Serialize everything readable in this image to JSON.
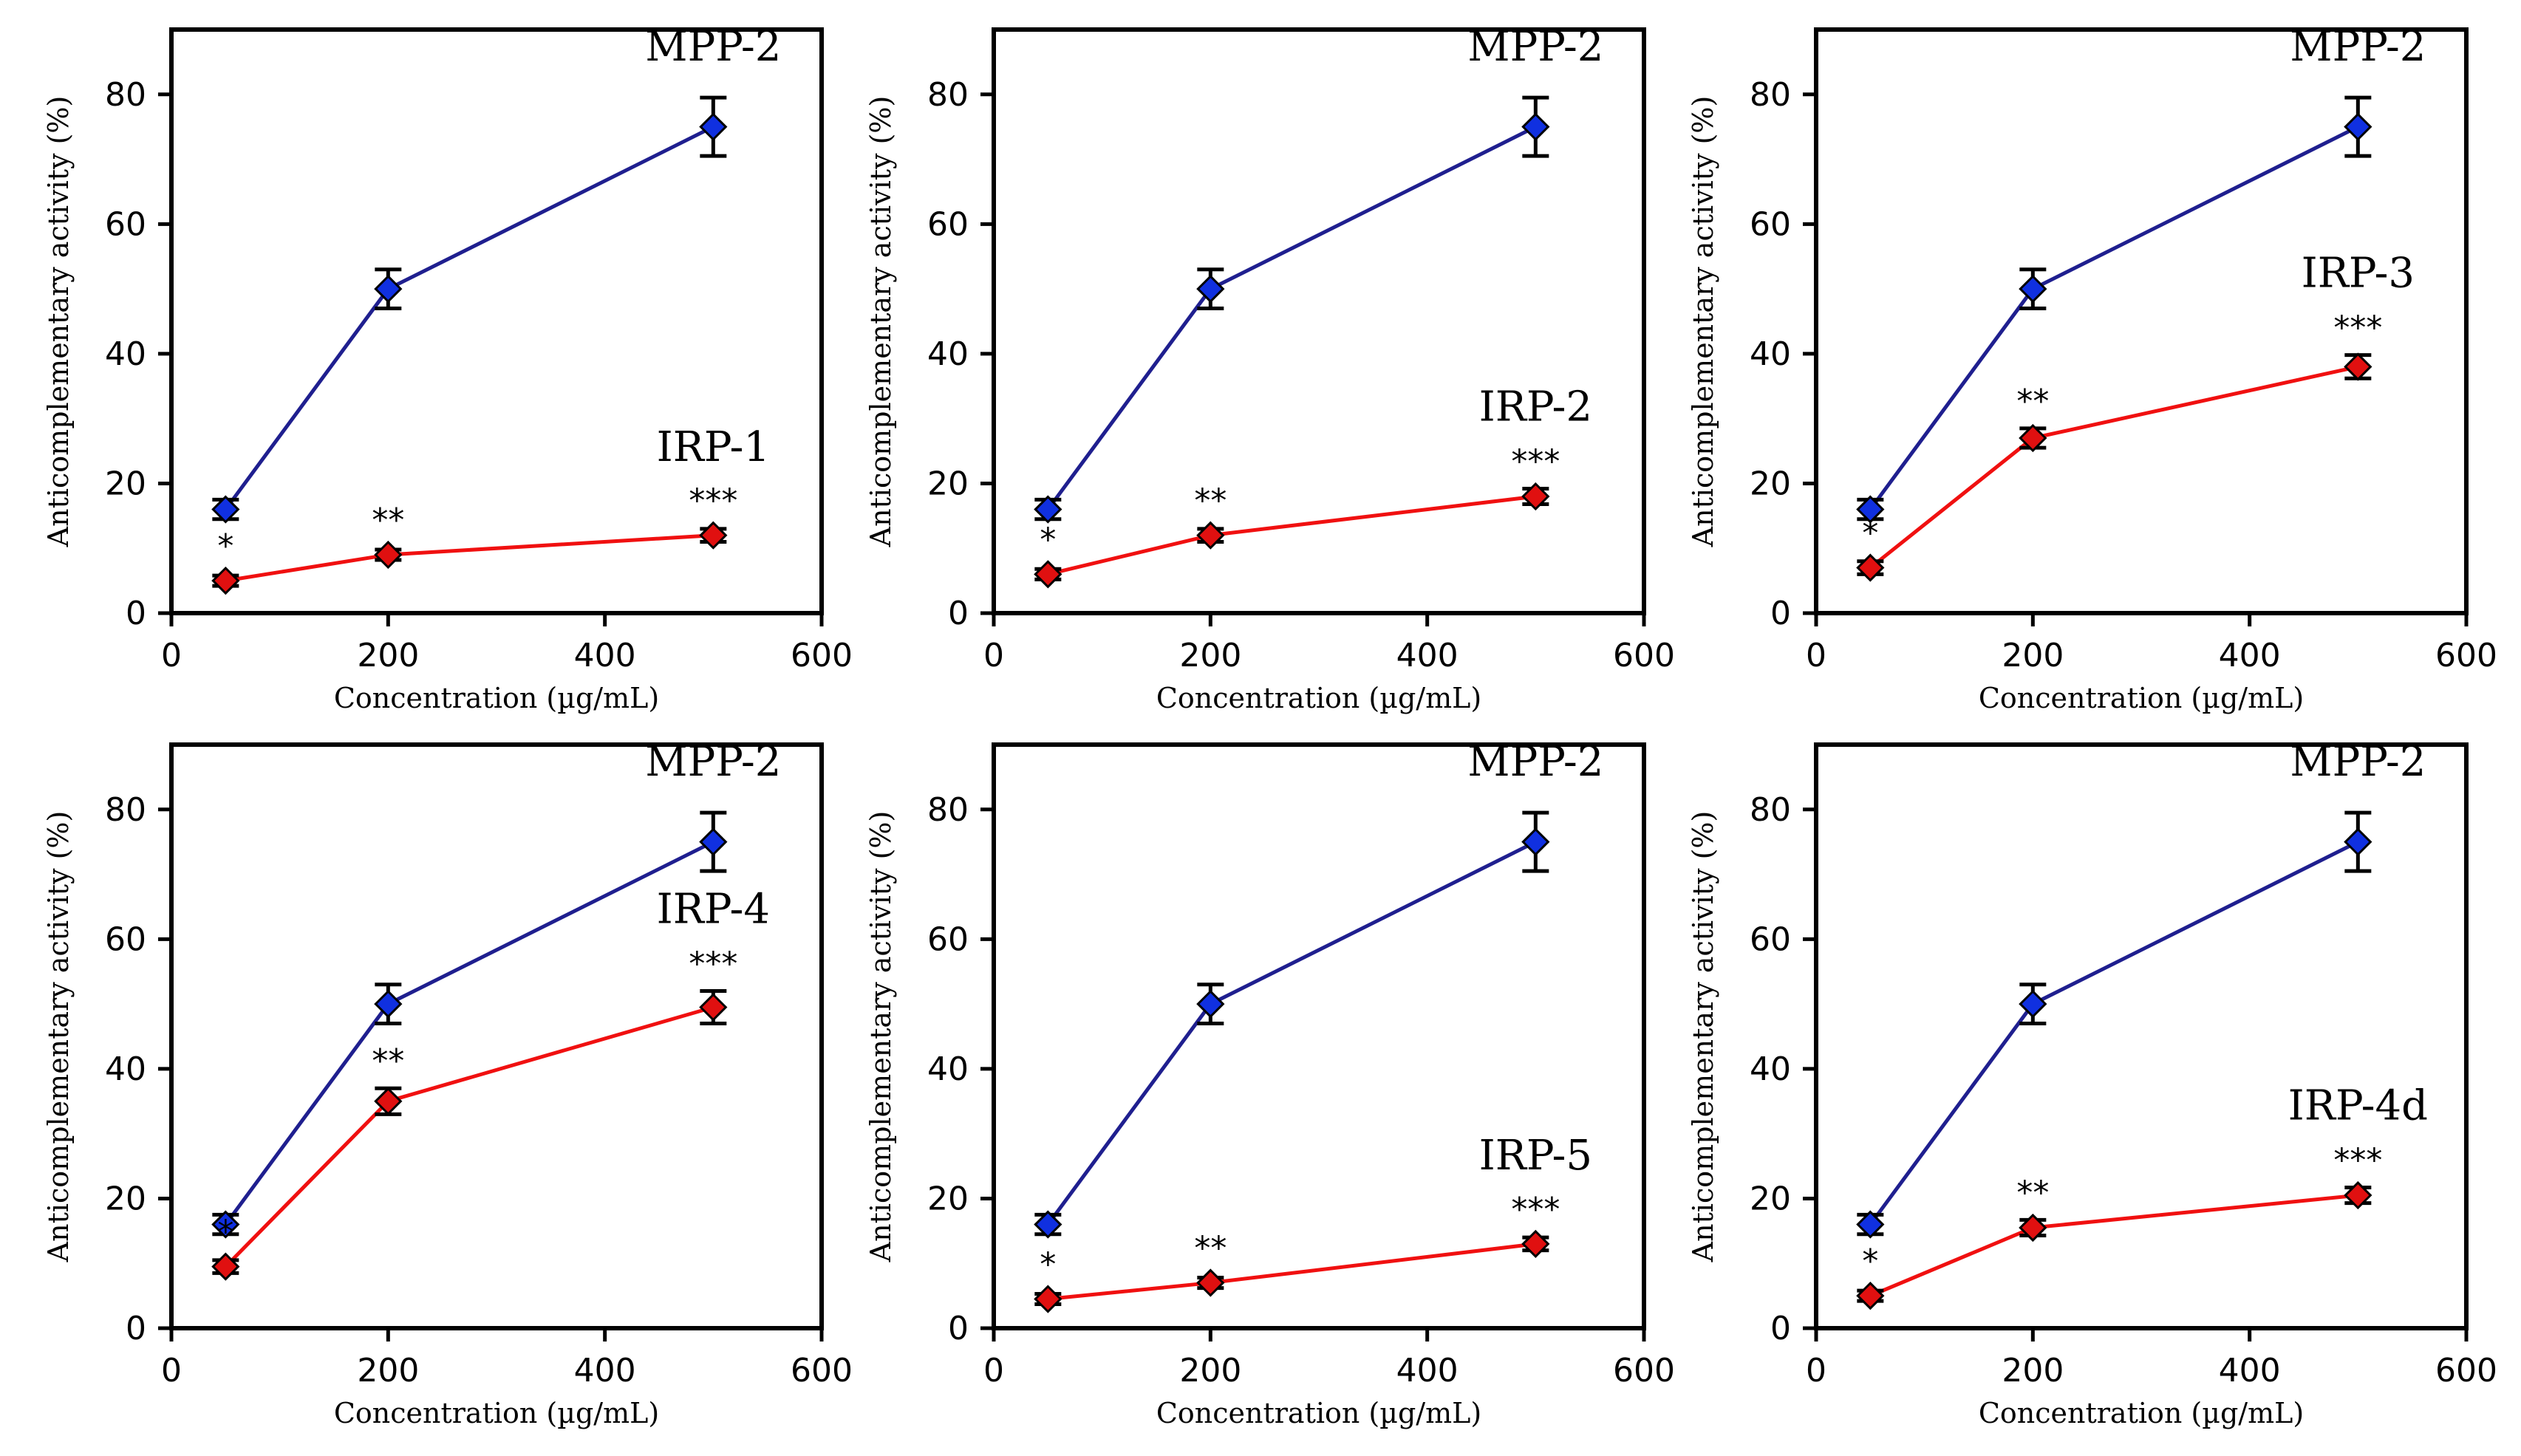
{
  "colors": {
    "reference": "#1f1f8f",
    "reference_marker": "#1030e0",
    "sample": "#f01010",
    "sample_marker": "#e01010",
    "axis": "#000000"
  },
  "chart_data": [
    {
      "type": "line",
      "xlabel": "Concentration (µg/mL)",
      "ylabel": "Anticomplementary activity (%)",
      "xlim": [
        0,
        600
      ],
      "ylim": [
        0,
        90
      ],
      "xticks": [
        "0",
        "200",
        "400",
        "600"
      ],
      "yticks": [
        "0",
        "20",
        "40",
        "60",
        "80"
      ],
      "x": [
        50,
        200,
        500
      ],
      "series": [
        {
          "name": "MPP-2",
          "values": [
            16,
            50,
            75
          ],
          "errors": [
            1.5,
            3,
            4.5
          ]
        },
        {
          "name": "IRP-1",
          "values": [
            5,
            9,
            12
          ],
          "errors": [
            0.8,
            0.8,
            1.0
          ],
          "significance": [
            "*",
            "**",
            "***"
          ]
        }
      ]
    },
    {
      "type": "line",
      "xlabel": "Concentration (µg/mL)",
      "ylabel": "Anticomplementary activity (%)",
      "xlim": [
        0,
        600
      ],
      "ylim": [
        0,
        90
      ],
      "xticks": [
        "0",
        "200",
        "400",
        "600"
      ],
      "yticks": [
        "0",
        "20",
        "40",
        "60",
        "80"
      ],
      "x": [
        50,
        200,
        500
      ],
      "series": [
        {
          "name": "MPP-2",
          "values": [
            16,
            50,
            75
          ],
          "errors": [
            1.5,
            3,
            4.5
          ]
        },
        {
          "name": "IRP-2",
          "values": [
            6,
            12,
            18
          ],
          "errors": [
            0.8,
            1.0,
            1.2
          ],
          "significance": [
            "*",
            "**",
            "***"
          ]
        }
      ]
    },
    {
      "type": "line",
      "xlabel": "Concentration (µg/mL)",
      "ylabel": "Anticomplementary activity (%)",
      "xlim": [
        0,
        600
      ],
      "ylim": [
        0,
        90
      ],
      "xticks": [
        "0",
        "200",
        "400",
        "600"
      ],
      "yticks": [
        "0",
        "20",
        "40",
        "60",
        "80"
      ],
      "x": [
        50,
        200,
        500
      ],
      "series": [
        {
          "name": "MPP-2",
          "values": [
            16,
            50,
            75
          ],
          "errors": [
            1.5,
            3,
            4.5
          ]
        },
        {
          "name": "IRP-3",
          "values": [
            7,
            27,
            38
          ],
          "errors": [
            1.0,
            1.5,
            1.8
          ],
          "significance": [
            "*",
            "**",
            "***"
          ]
        }
      ]
    },
    {
      "type": "line",
      "xlabel": "Concentration (µg/mL)",
      "ylabel": "Anticomplementary activity (%)",
      "xlim": [
        0,
        600
      ],
      "ylim": [
        0,
        90
      ],
      "xticks": [
        "0",
        "200",
        "400",
        "600"
      ],
      "yticks": [
        "0",
        "20",
        "40",
        "60",
        "80"
      ],
      "x": [
        50,
        200,
        500
      ],
      "series": [
        {
          "name": "MPP-2",
          "values": [
            16,
            50,
            75
          ],
          "errors": [
            1.5,
            3,
            4.5
          ]
        },
        {
          "name": "IRP-4",
          "values": [
            9.5,
            35,
            49.5
          ],
          "errors": [
            1.0,
            2.0,
            2.5
          ],
          "significance": [
            "*",
            "**",
            "***"
          ]
        }
      ]
    },
    {
      "type": "line",
      "xlabel": "Concentration (µg/mL)",
      "ylabel": "Anticomplementary activity (%)",
      "xlim": [
        0,
        600
      ],
      "ylim": [
        0,
        90
      ],
      "xticks": [
        "0",
        "200",
        "400",
        "600"
      ],
      "yticks": [
        "0",
        "20",
        "40",
        "60",
        "80"
      ],
      "x": [
        50,
        200,
        500
      ],
      "series": [
        {
          "name": "MPP-2",
          "values": [
            16,
            50,
            75
          ],
          "errors": [
            1.5,
            3,
            4.5
          ]
        },
        {
          "name": "IRP-5",
          "values": [
            4.5,
            7,
            13
          ],
          "errors": [
            0.8,
            0.8,
            1.0
          ],
          "significance": [
            "*",
            "**",
            "***"
          ]
        }
      ]
    },
    {
      "type": "line",
      "xlabel": "Concentration (µg/mL)",
      "ylabel": "Anticomplementary activity (%)",
      "xlim": [
        0,
        600
      ],
      "ylim": [
        0,
        90
      ],
      "xticks": [
        "0",
        "200",
        "400",
        "600"
      ],
      "yticks": [
        "0",
        "20",
        "40",
        "60",
        "80"
      ],
      "x": [
        50,
        200,
        500
      ],
      "series": [
        {
          "name": "MPP-2",
          "values": [
            16,
            50,
            75
          ],
          "errors": [
            1.5,
            3,
            4.5
          ]
        },
        {
          "name": "IRP-4d",
          "values": [
            5,
            15.5,
            20.5
          ],
          "errors": [
            0.8,
            1.2,
            1.2
          ],
          "significance": [
            "*",
            "**",
            "***"
          ]
        }
      ]
    }
  ]
}
